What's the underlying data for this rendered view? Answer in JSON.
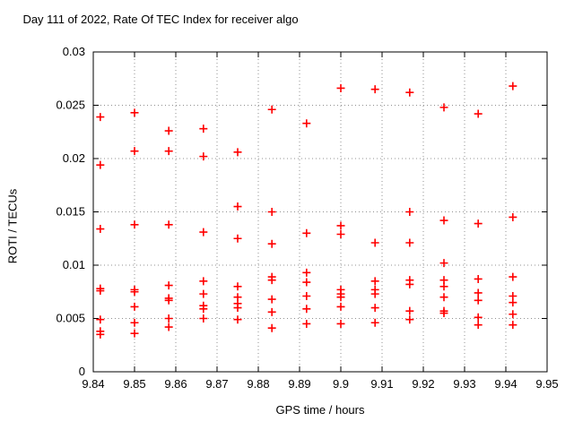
{
  "window": {
    "background_color": "#ffffff"
  },
  "chart_data": {
    "type": "scatter",
    "title": "Day 111 of 2022, Rate Of TEC Index for receiver algo",
    "xlabel": "GPS time / hours",
    "ylabel": "ROTI / TECUs",
    "xlim": [
      9.84,
      9.95
    ],
    "ylim": [
      0,
      0.03
    ],
    "grid": true,
    "grid_style": "dotted-gray",
    "legend": "none",
    "marker": "plus",
    "marker_color": "#ff0000",
    "axis_color": "#000000",
    "grid_color": "#909090",
    "xticks": [
      {
        "value": 9.84,
        "label": "9.84"
      },
      {
        "value": 9.85,
        "label": "9.85"
      },
      {
        "value": 9.86,
        "label": "9.86"
      },
      {
        "value": 9.87,
        "label": "9.87"
      },
      {
        "value": 9.88,
        "label": "9.88"
      },
      {
        "value": 9.89,
        "label": "9.89"
      },
      {
        "value": 9.9,
        "label": "9.9"
      },
      {
        "value": 9.91,
        "label": "9.91"
      },
      {
        "value": 9.92,
        "label": "9.92"
      },
      {
        "value": 9.93,
        "label": "9.93"
      },
      {
        "value": 9.94,
        "label": "9.94"
      },
      {
        "value": 9.95,
        "label": "9.95"
      }
    ],
    "yticks": [
      {
        "value": 0.0,
        "label": "0"
      },
      {
        "value": 0.005,
        "label": "0.005"
      },
      {
        "value": 0.01,
        "label": "0.01"
      },
      {
        "value": 0.015,
        "label": "0.015"
      },
      {
        "value": 0.02,
        "label": "0.02"
      },
      {
        "value": 0.025,
        "label": "0.025"
      },
      {
        "value": 0.03,
        "label": "0.03"
      }
    ],
    "series": [
      {
        "name": "ROTI",
        "points": [
          [
            9.8417,
            0.0239
          ],
          [
            9.8417,
            0.0194
          ],
          [
            9.8417,
            0.0134
          ],
          [
            9.8417,
            0.0078
          ],
          [
            9.8417,
            0.0076
          ],
          [
            9.8417,
            0.0049
          ],
          [
            9.8417,
            0.0038
          ],
          [
            9.8417,
            0.0035
          ],
          [
            9.85,
            0.0243
          ],
          [
            9.85,
            0.0207
          ],
          [
            9.85,
            0.0138
          ],
          [
            9.85,
            0.0077
          ],
          [
            9.85,
            0.0075
          ],
          [
            9.85,
            0.0061
          ],
          [
            9.85,
            0.0046
          ],
          [
            9.85,
            0.0036
          ],
          [
            9.8583,
            0.0226
          ],
          [
            9.8583,
            0.0207
          ],
          [
            9.8583,
            0.0138
          ],
          [
            9.8583,
            0.0081
          ],
          [
            9.8583,
            0.0069
          ],
          [
            9.8583,
            0.0067
          ],
          [
            9.8583,
            0.005
          ],
          [
            9.8583,
            0.0042
          ],
          [
            9.8667,
            0.0228
          ],
          [
            9.8667,
            0.0202
          ],
          [
            9.8667,
            0.0131
          ],
          [
            9.8667,
            0.0085
          ],
          [
            9.8667,
            0.0073
          ],
          [
            9.8667,
            0.0062
          ],
          [
            9.8667,
            0.0059
          ],
          [
            9.8667,
            0.005
          ],
          [
            9.875,
            0.0206
          ],
          [
            9.875,
            0.0155
          ],
          [
            9.875,
            0.0125
          ],
          [
            9.875,
            0.008
          ],
          [
            9.875,
            0.007
          ],
          [
            9.875,
            0.0064
          ],
          [
            9.875,
            0.006
          ],
          [
            9.875,
            0.0049
          ],
          [
            9.8833,
            0.0246
          ],
          [
            9.8833,
            0.015
          ],
          [
            9.8833,
            0.012
          ],
          [
            9.8833,
            0.0089
          ],
          [
            9.8833,
            0.0086
          ],
          [
            9.8833,
            0.0068
          ],
          [
            9.8833,
            0.0056
          ],
          [
            9.8833,
            0.0041
          ],
          [
            9.8917,
            0.0233
          ],
          [
            9.8917,
            0.013
          ],
          [
            9.8917,
            0.0093
          ],
          [
            9.8917,
            0.0084
          ],
          [
            9.8917,
            0.0071
          ],
          [
            9.8917,
            0.0059
          ],
          [
            9.8917,
            0.0045
          ],
          [
            9.9,
            0.0266
          ],
          [
            9.9,
            0.0137
          ],
          [
            9.9,
            0.0129
          ],
          [
            9.9,
            0.0077
          ],
          [
            9.9,
            0.0073
          ],
          [
            9.9,
            0.007
          ],
          [
            9.9,
            0.0061
          ],
          [
            9.9,
            0.0045
          ],
          [
            9.9083,
            0.0265
          ],
          [
            9.9083,
            0.0121
          ],
          [
            9.9083,
            0.0085
          ],
          [
            9.9083,
            0.0077
          ],
          [
            9.9083,
            0.0073
          ],
          [
            9.9083,
            0.006
          ],
          [
            9.9083,
            0.0046
          ],
          [
            9.9167,
            0.0262
          ],
          [
            9.9167,
            0.015
          ],
          [
            9.9167,
            0.0121
          ],
          [
            9.9167,
            0.0086
          ],
          [
            9.9167,
            0.0082
          ],
          [
            9.9167,
            0.0057
          ],
          [
            9.9167,
            0.0049
          ],
          [
            9.925,
            0.0248
          ],
          [
            9.925,
            0.0142
          ],
          [
            9.925,
            0.0102
          ],
          [
            9.925,
            0.0086
          ],
          [
            9.925,
            0.008
          ],
          [
            9.925,
            0.007
          ],
          [
            9.925,
            0.0057
          ],
          [
            9.925,
            0.0055
          ],
          [
            9.9333,
            0.0242
          ],
          [
            9.9333,
            0.0139
          ],
          [
            9.9333,
            0.0087
          ],
          [
            9.9333,
            0.0074
          ],
          [
            9.9333,
            0.0067
          ],
          [
            9.9333,
            0.0051
          ],
          [
            9.9333,
            0.0044
          ],
          [
            9.9417,
            0.0268
          ],
          [
            9.9417,
            0.0145
          ],
          [
            9.9417,
            0.0089
          ],
          [
            9.9417,
            0.0071
          ],
          [
            9.9417,
            0.0065
          ],
          [
            9.9417,
            0.0054
          ],
          [
            9.9417,
            0.0044
          ]
        ]
      }
    ]
  }
}
